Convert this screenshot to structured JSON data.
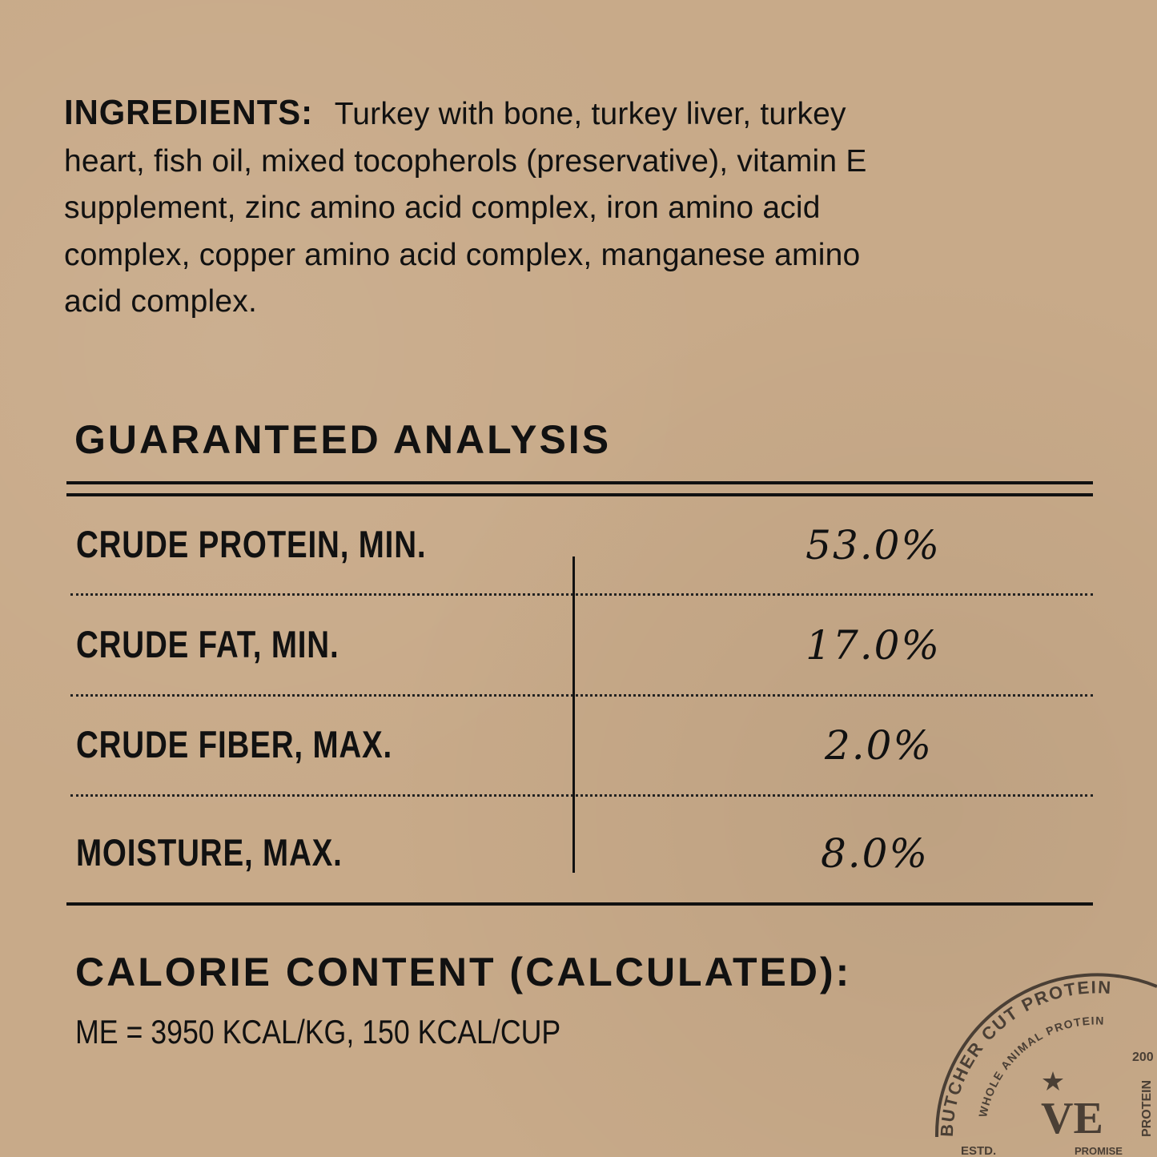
{
  "ingredients": {
    "label": "INGREDIENTS:",
    "lines": [
      " Turkey with bone, turkey liver, turkey",
      "heart, fish oil, mixed tocopherols (preservative), vitamin E",
      "supplement, zinc amino acid complex, iron amino acid",
      "complex, copper amino acid complex, manganese amino",
      "acid complex."
    ]
  },
  "analysis": {
    "title": "GUARANTEED ANALYSIS",
    "rows": [
      {
        "label": "CRUDE PROTEIN, MIN.",
        "value": "53.0%"
      },
      {
        "label": "CRUDE FAT, MIN.",
        "value": "17.0%"
      },
      {
        "label": "CRUDE FIBER, MAX.",
        "value": "2.0%"
      },
      {
        "label": "MOISTURE, MAX.",
        "value": "8.0%"
      }
    ]
  },
  "calorie": {
    "title": "CALORIE CONTENT (CALCULATED):",
    "value": "ME = 3950 KCAL/KG, 150 KCAL/CUP"
  },
  "stamp": {
    "outer": "BUTCHER CUT PROTEIN",
    "inner": "WHOLE ANIMAL PROTEIN",
    "monogram": "VE",
    "estd": "ESTD.",
    "year": "200",
    "right": "PROMISE",
    "right2": "PROTEIN",
    "color": "#4a3f35"
  }
}
